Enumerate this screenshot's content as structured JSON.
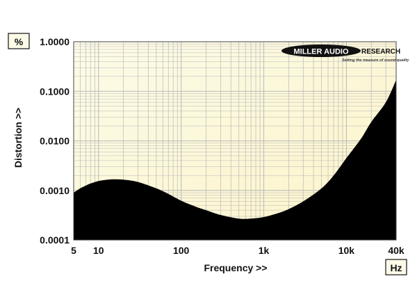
{
  "chart_data": {
    "type": "area",
    "xlabel": "Frequency >>",
    "ylabel": "Distortion >>",
    "x_unit": "Hz",
    "y_unit": "%",
    "x_scale": "log",
    "y_scale": "log",
    "xlim": [
      5,
      40000
    ],
    "ylim": [
      0.0001,
      1.0
    ],
    "x_ticks": [
      {
        "value": 5,
        "label": "5"
      },
      {
        "value": 10,
        "label": "10"
      },
      {
        "value": 100,
        "label": "100"
      },
      {
        "value": 1000,
        "label": "1k"
      },
      {
        "value": 10000,
        "label": "10k"
      },
      {
        "value": 40000,
        "label": "40k"
      }
    ],
    "y_ticks": [
      {
        "value": 1.0,
        "label": "1.0000"
      },
      {
        "value": 0.1,
        "label": "0.1000"
      },
      {
        "value": 0.01,
        "label": "0.0100"
      },
      {
        "value": 0.001,
        "label": "0.0010"
      },
      {
        "value": 0.0001,
        "label": "0.0001"
      }
    ],
    "grid": true,
    "series": [
      {
        "x": [
          5,
          6,
          7,
          8,
          10,
          13,
          15,
          20,
          30,
          50,
          70,
          100,
          150,
          200,
          300,
          500,
          700,
          1000,
          1500,
          2000,
          3000,
          5000,
          7000,
          10000,
          15000,
          20000,
          30000,
          40000
        ],
        "y": [
          0.0009,
          0.0011,
          0.00125,
          0.00138,
          0.00155,
          0.00165,
          0.00168,
          0.00165,
          0.00148,
          0.0011,
          0.00085,
          0.00062,
          0.00047,
          0.0004,
          0.00032,
          0.00027,
          0.00027,
          0.00029,
          0.00035,
          0.00042,
          0.0006,
          0.0011,
          0.002,
          0.0045,
          0.011,
          0.024,
          0.06,
          0.17
        ],
        "color": "#000000"
      }
    ],
    "plot_background": "#fdfbe8",
    "plot_background_gradient_to": "#fbf3c8",
    "gridline_color": "#b8b8b8"
  },
  "logo": {
    "brand": "MILLER AUDIO",
    "suffix": "RESEARCH",
    "tagline": "Setting the measure of sound quality"
  }
}
